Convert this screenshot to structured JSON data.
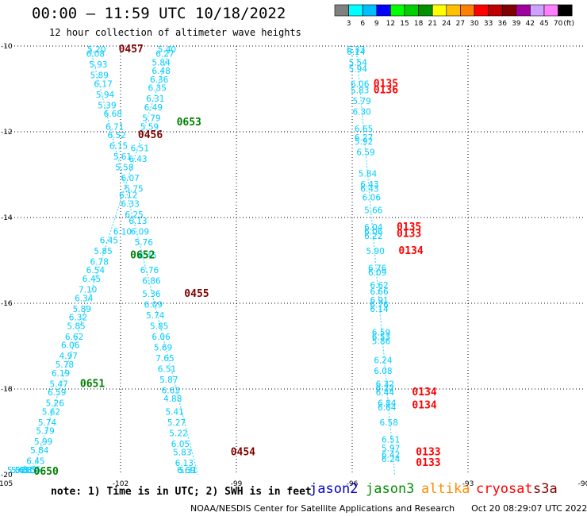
{
  "header": {
    "title": "00:00 — 11:59 UTC 10/18/2022",
    "subtitle": "12 hour collection of altimeter wave heights"
  },
  "colorbar": {
    "unit": "(ft)",
    "colors": [
      "#808080",
      "#00ffff",
      "#00bfff",
      "#0000ff",
      "#00ff00",
      "#00d000",
      "#009000",
      "#ffff00",
      "#ffc000",
      "#ff8000",
      "#ff0000",
      "#c00000",
      "#800000",
      "#a000a0",
      "#d0a0ff",
      "#ff80ff",
      "#000000"
    ],
    "labels": [
      "3",
      "6",
      "9",
      "12",
      "15",
      "18",
      "21",
      "24",
      "27",
      "30",
      "33",
      "36",
      "39",
      "42",
      "45",
      "70"
    ]
  },
  "axes": {
    "x_ticks": [
      "-105",
      "-102",
      "-99",
      "-96",
      "-93",
      "-90"
    ],
    "y_ticks": [
      "-10",
      "-12",
      "-14",
      "-16",
      "-18",
      "-20"
    ]
  },
  "tracks": {
    "color": "#00ccff",
    "lines": [
      {
        "start_lon": -100.7,
        "start_lat": -10.0,
        "end_lon": -104.3,
        "end_lat": -20.0
      },
      {
        "start_lon": -102.8,
        "start_lat": -10.0,
        "end_lon": -100.0,
        "end_lat": -20.0
      },
      {
        "start_lon": -95.9,
        "start_lat": -10.0,
        "end_lon": -94.9,
        "end_lat": -20.0
      }
    ],
    "readings": [
      {
        "v": "5.20",
        "lon": -102.62,
        "lat": -10.05
      },
      {
        "v": "6.08",
        "lon": -102.65,
        "lat": -10.25
      },
      {
        "v": "5.93",
        "lon": -102.58,
        "lat": -10.5
      },
      {
        "v": "5.89",
        "lon": -102.55,
        "lat": -10.75
      },
      {
        "v": "6.17",
        "lon": -102.45,
        "lat": -10.95
      },
      {
        "v": "5.94",
        "lon": -102.4,
        "lat": -11.2
      },
      {
        "v": "5.39",
        "lon": -102.35,
        "lat": -11.45
      },
      {
        "v": "6.68",
        "lon": -102.2,
        "lat": -11.65
      },
      {
        "v": "6.71",
        "lon": -102.15,
        "lat": -11.95
      },
      {
        "v": "6.52",
        "lon": -102.1,
        "lat": -12.15
      },
      {
        "v": "6.15",
        "lon": -102.05,
        "lat": -12.4
      },
      {
        "v": "5.61",
        "lon": -101.95,
        "lat": -12.65
      },
      {
        "v": "5.58",
        "lon": -101.9,
        "lat": -12.9
      },
      {
        "v": "6.07",
        "lon": -101.75,
        "lat": -13.15
      },
      {
        "v": "5.75",
        "lon": -101.65,
        "lat": -13.4
      },
      {
        "v": "6.12",
        "lon": -101.8,
        "lat": -13.55
      },
      {
        "v": "6.33",
        "lon": -101.75,
        "lat": -13.75
      },
      {
        "v": "6.25",
        "lon": -101.65,
        "lat": -14.0
      },
      {
        "v": "6.13",
        "lon": -101.55,
        "lat": -14.15
      },
      {
        "v": "6.10",
        "lon": -101.95,
        "lat": -14.4
      },
      {
        "v": "6.45",
        "lon": -102.3,
        "lat": -14.6
      },
      {
        "v": "5.85",
        "lon": -102.45,
        "lat": -14.85
      },
      {
        "v": "6.78",
        "lon": -102.55,
        "lat": -15.1
      },
      {
        "v": "6.54",
        "lon": -102.65,
        "lat": -15.3
      },
      {
        "v": "6.45",
        "lon": -102.75,
        "lat": -15.5
      },
      {
        "v": "7.10",
        "lon": -102.85,
        "lat": -15.75
      },
      {
        "v": "6.34",
        "lon": -102.95,
        "lat": -15.95
      },
      {
        "v": "5.89",
        "lon": -103.0,
        "lat": -16.2
      },
      {
        "v": "6.32",
        "lon": -103.1,
        "lat": -16.4
      },
      {
        "v": "5.85",
        "lon": -103.15,
        "lat": -16.6
      },
      {
        "v": "6.62",
        "lon": -103.2,
        "lat": -16.85
      },
      {
        "v": "6.06",
        "lon": -103.3,
        "lat": -17.05
      },
      {
        "v": "4.97",
        "lon": -103.35,
        "lat": -17.3
      },
      {
        "v": "5.78",
        "lon": -103.45,
        "lat": -17.5
      },
      {
        "v": "6.19",
        "lon": -103.55,
        "lat": -17.7
      },
      {
        "v": "5.47",
        "lon": -103.6,
        "lat": -17.95
      },
      {
        "v": "6.59",
        "lon": -103.65,
        "lat": -18.15
      },
      {
        "v": "5.26",
        "lon": -103.7,
        "lat": -18.4
      },
      {
        "v": "5.62",
        "lon": -103.8,
        "lat": -18.6
      },
      {
        "v": "5.74",
        "lon": -103.9,
        "lat": -18.85
      },
      {
        "v": "5.79",
        "lon": -103.95,
        "lat": -19.05
      },
      {
        "v": "5.99",
        "lon": -104.0,
        "lat": -19.3
      },
      {
        "v": "5.84",
        "lon": -104.1,
        "lat": -19.5
      },
      {
        "v": "6.45",
        "lon": -104.2,
        "lat": -19.75
      },
      {
        "v": "5.55",
        "lon": -104.3,
        "lat": -19.95
      },
      {
        "v": "4.85",
        "lon": -104.4,
        "lat": -20.2
      },
      {
        "v": "5.31",
        "lon": -104.5,
        "lat": -20.4
      },
      {
        "v": "5.63",
        "lon": -104.6,
        "lat": -20.6
      },
      {
        "v": "5.03",
        "lon": -104.7,
        "lat": -20.85
      },
      {
        "v": "5.40",
        "lon": -100.8,
        "lat": -10.05
      },
      {
        "v": "6.27",
        "lon": -100.85,
        "lat": -10.25
      },
      {
        "v": "5.84",
        "lon": -100.95,
        "lat": -10.45
      },
      {
        "v": "6.48",
        "lon": -100.95,
        "lat": -10.65
      },
      {
        "v": "6.36",
        "lon": -101.0,
        "lat": -10.85
      },
      {
        "v": "6.35",
        "lon": -101.05,
        "lat": -11.05
      },
      {
        "v": "6.31",
        "lon": -101.1,
        "lat": -11.3
      },
      {
        "v": "6.49",
        "lon": -101.15,
        "lat": -11.5
      },
      {
        "v": "5.79",
        "lon": -101.2,
        "lat": -11.75
      },
      {
        "v": "5.59",
        "lon": -101.25,
        "lat": -11.95
      },
      {
        "v": "6.51",
        "lon": -101.5,
        "lat": -12.45
      },
      {
        "v": "6.43",
        "lon": -101.55,
        "lat": -12.7
      },
      {
        "v": "6.09",
        "lon": -101.5,
        "lat": -14.4
      },
      {
        "v": "5.76",
        "lon": -101.4,
        "lat": -14.65
      },
      {
        "v": "6.45",
        "lon": -101.3,
        "lat": -14.95
      },
      {
        "v": "6.76",
        "lon": -101.25,
        "lat": -15.3
      },
      {
        "v": "6.86",
        "lon": -101.2,
        "lat": -15.55
      },
      {
        "v": "5.36",
        "lon": -101.2,
        "lat": -15.85
      },
      {
        "v": "6.09",
        "lon": -101.15,
        "lat": -16.1
      },
      {
        "v": "5.74",
        "lon": -101.1,
        "lat": -16.35
      },
      {
        "v": "5.85",
        "lon": -101.0,
        "lat": -16.6
      },
      {
        "v": "6.06",
        "lon": -100.95,
        "lat": -16.85
      },
      {
        "v": "5.69",
        "lon": -100.9,
        "lat": -17.1
      },
      {
        "v": "7.65",
        "lon": -100.85,
        "lat": -17.35
      },
      {
        "v": "6.51",
        "lon": -100.8,
        "lat": -17.6
      },
      {
        "v": "5.87",
        "lon": -100.75,
        "lat": -17.85
      },
      {
        "v": "6.63",
        "lon": -100.7,
        "lat": -18.1
      },
      {
        "v": "4.88",
        "lon": -100.65,
        "lat": -18.3
      },
      {
        "v": "5.41",
        "lon": -100.6,
        "lat": -18.6
      },
      {
        "v": "5.27",
        "lon": -100.55,
        "lat": -18.85
      },
      {
        "v": "5.22",
        "lon": -100.5,
        "lat": -19.1
      },
      {
        "v": "6.05",
        "lon": -100.45,
        "lat": -19.35
      },
      {
        "v": "5.83",
        "lon": -100.4,
        "lat": -19.55
      },
      {
        "v": "6.13",
        "lon": -100.35,
        "lat": -19.8
      },
      {
        "v": "6.69",
        "lon": -100.3,
        "lat": -20.05
      },
      {
        "v": "5.31",
        "lon": -100.25,
        "lat": -20.3
      },
      {
        "v": "6.33",
        "lon": -95.9,
        "lat": -10.05
      },
      {
        "v": "6.14",
        "lon": -95.9,
        "lat": -10.2
      },
      {
        "v": "5.54",
        "lon": -95.85,
        "lat": -10.45
      },
      {
        "v": "5.94",
        "lon": -95.85,
        "lat": -10.6
      },
      {
        "v": "6.06",
        "lon": -95.8,
        "lat": -10.95
      },
      {
        "v": "5.83",
        "lon": -95.8,
        "lat": -11.1
      },
      {
        "v": "5.79",
        "lon": -95.75,
        "lat": -11.35
      },
      {
        "v": "6.30",
        "lon": -95.75,
        "lat": -11.6
      },
      {
        "v": "6.65",
        "lon": -95.7,
        "lat": -12.0
      },
      {
        "v": "6.27",
        "lon": -95.7,
        "lat": -12.2
      },
      {
        "v": "5.92",
        "lon": -95.7,
        "lat": -12.3
      },
      {
        "v": "6.59",
        "lon": -95.65,
        "lat": -12.55
      },
      {
        "v": "5.84",
        "lon": -95.6,
        "lat": -13.05
      },
      {
        "v": "6.43",
        "lon": -95.55,
        "lat": -13.3
      },
      {
        "v": "6.43",
        "lon": -95.55,
        "lat": -13.4
      },
      {
        "v": "6.06",
        "lon": -95.5,
        "lat": -13.6
      },
      {
        "v": "5.66",
        "lon": -95.45,
        "lat": -13.9
      },
      {
        "v": "6.04",
        "lon": -95.45,
        "lat": -14.3
      },
      {
        "v": "6.06",
        "lon": -95.45,
        "lat": -14.4
      },
      {
        "v": "6.22",
        "lon": -95.45,
        "lat": -14.5
      },
      {
        "v": "5.90",
        "lon": -95.4,
        "lat": -14.85
      },
      {
        "v": "6.76",
        "lon": -95.35,
        "lat": -15.25
      },
      {
        "v": "6.09",
        "lon": -95.35,
        "lat": -15.35
      },
      {
        "v": "6.62",
        "lon": -95.3,
        "lat": -15.65
      },
      {
        "v": "6.66",
        "lon": -95.3,
        "lat": -15.8
      },
      {
        "v": "6.91",
        "lon": -95.3,
        "lat": -16.0
      },
      {
        "v": "6.76",
        "lon": -95.3,
        "lat": -16.1
      },
      {
        "v": "6.14",
        "lon": -95.3,
        "lat": -16.2
      },
      {
        "v": "6.59",
        "lon": -95.25,
        "lat": -16.75
      },
      {
        "v": "6.53",
        "lon": -95.25,
        "lat": -16.85
      },
      {
        "v": "5.86",
        "lon": -95.25,
        "lat": -16.95
      },
      {
        "v": "6.24",
        "lon": -95.2,
        "lat": -17.4
      },
      {
        "v": "6.08",
        "lon": -95.2,
        "lat": -17.65
      },
      {
        "v": "6.32",
        "lon": -95.15,
        "lat": -17.95
      },
      {
        "v": "6.22",
        "lon": -95.15,
        "lat": -18.05
      },
      {
        "v": "6.44",
        "lon": -95.15,
        "lat": -18.15
      },
      {
        "v": "6.84",
        "lon": -95.1,
        "lat": -18.4
      },
      {
        "v": "6.64",
        "lon": -95.1,
        "lat": -18.5
      },
      {
        "v": "6.58",
        "lon": -95.05,
        "lat": -18.85
      },
      {
        "v": "6.51",
        "lon": -95.0,
        "lat": -19.25
      },
      {
        "v": "5.97",
        "lon": -95.0,
        "lat": -19.45
      },
      {
        "v": "6.42",
        "lon": -95.0,
        "lat": -19.6
      },
      {
        "v": "6.24",
        "lon": -95.0,
        "lat": -19.7
      }
    ]
  },
  "pass_labels": [
    {
      "t": "0457",
      "color": "#800000",
      "lon": -102.05,
      "lat": -10.05
    },
    {
      "t": "0653",
      "color": "#008000",
      "lon": -100.55,
      "lat": -11.85
    },
    {
      "t": "0456",
      "color": "#800000",
      "lon": -101.55,
      "lat": -12.15
    },
    {
      "t": "0652",
      "color": "#008000",
      "lon": -101.75,
      "lat": -14.95
    },
    {
      "t": "0455",
      "color": "#800000",
      "lon": -100.35,
      "lat": -15.85
    },
    {
      "t": "0651",
      "color": "#008000",
      "lon": -103.05,
      "lat": -17.95
    },
    {
      "t": "0454",
      "color": "#800000",
      "lon": -99.15,
      "lat": -19.55
    },
    {
      "t": "0650",
      "color": "#008000",
      "lon": -104.25,
      "lat": -20.85
    },
    {
      "t": "0135",
      "color": "#ff0000",
      "lon": -95.45,
      "lat": -10.95
    },
    {
      "t": "0136",
      "color": "#ff0000",
      "lon": -95.45,
      "lat": -11.1
    },
    {
      "t": "0135",
      "color": "#ff0000",
      "lon": -94.85,
      "lat": -14.3
    },
    {
      "t": "0133",
      "color": "#ff0000",
      "lon": -94.85,
      "lat": -14.45
    },
    {
      "t": "0134",
      "color": "#ff0000",
      "lon": -94.8,
      "lat": -14.85
    },
    {
      "t": "0134",
      "color": "#ff0000",
      "lon": -94.45,
      "lat": -18.15
    },
    {
      "t": "0134",
      "color": "#ff0000",
      "lon": -94.45,
      "lat": -18.45
    },
    {
      "t": "0133",
      "color": "#ff0000",
      "lon": -94.35,
      "lat": -19.55
    },
    {
      "t": "0133",
      "color": "#ff0000",
      "lon": -94.35,
      "lat": -19.8
    }
  ],
  "footer": {
    "note": "note: 1) Time is in UTC; 2) SWH is in feet",
    "satellites": [
      {
        "name": "jason2",
        "color": "#0000cc"
      },
      {
        "name": "jason3",
        "color": "#009000"
      },
      {
        "name": "altika",
        "color": "#ff8c00"
      },
      {
        "name": "cryosat",
        "color": "#ff0000"
      },
      {
        "name": "s3a",
        "color": "#800000"
      }
    ],
    "credit": "NOAA/NESDIS Center for Satellite Applications and Research",
    "timestamp": "Oct 20 08:29:07 UTC 2022"
  }
}
